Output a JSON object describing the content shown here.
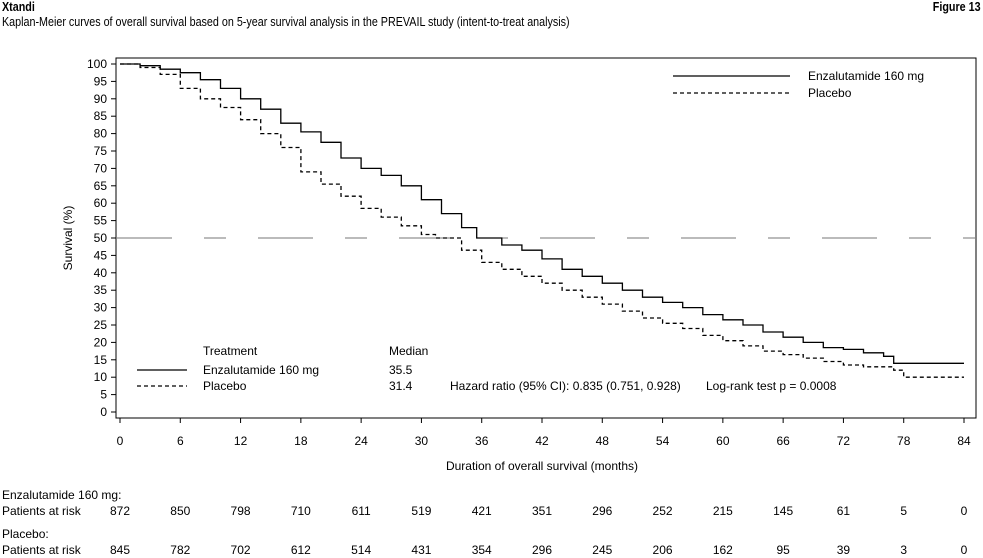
{
  "header": {
    "brand": "Xtandi",
    "figure_label": "Figure 13",
    "subtitle": "Kaplan-Meier curves of overall survival based on 5-year survival analysis in the PREVAIL study (intent-to-treat analysis)"
  },
  "chart_data": {
    "type": "line",
    "title": "Kaplan-Meier curves of overall survival based on 5-year survival analysis in the PREVAIL study (intent-to-treat analysis)",
    "xlabel": "Duration of overall survival (months)",
    "ylabel": "Survival (%)",
    "xlim": [
      0,
      84
    ],
    "ylim": [
      0,
      100
    ],
    "xticks": [
      "0",
      "6",
      "12",
      "18",
      "24",
      "30",
      "36",
      "42",
      "48",
      "54",
      "60",
      "66",
      "72",
      "78",
      "84"
    ],
    "yticks": [
      "0",
      "5",
      "10",
      "15",
      "20",
      "25",
      "30",
      "35",
      "40",
      "45",
      "50",
      "55",
      "60",
      "65",
      "70",
      "75",
      "80",
      "85",
      "90",
      "95",
      "100"
    ],
    "grid": false,
    "legend_position": "top-right",
    "reference_line": {
      "y": 50,
      "style": "dashed"
    },
    "series": [
      {
        "name": "Enzalutamide 160 mg",
        "style": "solid",
        "points": [
          [
            0,
            100
          ],
          [
            2,
            99.5
          ],
          [
            4,
            98.5
          ],
          [
            6,
            97.5
          ],
          [
            8,
            95.5
          ],
          [
            10,
            93
          ],
          [
            12,
            90
          ],
          [
            14,
            87
          ],
          [
            16,
            83
          ],
          [
            18,
            80.5
          ],
          [
            20,
            77.5
          ],
          [
            22,
            73
          ],
          [
            24,
            70
          ],
          [
            26,
            68
          ],
          [
            28,
            65
          ],
          [
            30,
            61
          ],
          [
            32,
            57
          ],
          [
            34,
            53
          ],
          [
            35.5,
            50
          ],
          [
            38,
            48
          ],
          [
            40,
            46.5
          ],
          [
            42,
            44
          ],
          [
            44,
            41
          ],
          [
            46,
            39
          ],
          [
            48,
            37
          ],
          [
            50,
            35
          ],
          [
            52,
            33
          ],
          [
            54,
            31.5
          ],
          [
            56,
            30
          ],
          [
            58,
            28
          ],
          [
            60,
            26.5
          ],
          [
            62,
            25
          ],
          [
            64,
            23
          ],
          [
            66,
            21.5
          ],
          [
            68,
            20
          ],
          [
            70,
            18.5
          ],
          [
            72,
            18
          ],
          [
            74,
            17
          ],
          [
            76,
            16
          ],
          [
            77,
            14
          ],
          [
            84,
            14
          ]
        ]
      },
      {
        "name": "Placebo",
        "style": "dashed",
        "points": [
          [
            0,
            100
          ],
          [
            2,
            99
          ],
          [
            4,
            97
          ],
          [
            6,
            93
          ],
          [
            8,
            90
          ],
          [
            10,
            87.5
          ],
          [
            12,
            84
          ],
          [
            14,
            80
          ],
          [
            16,
            76
          ],
          [
            18,
            69
          ],
          [
            20,
            65.5
          ],
          [
            22,
            62
          ],
          [
            24,
            58.5
          ],
          [
            26,
            56
          ],
          [
            28,
            53.5
          ],
          [
            30,
            51
          ],
          [
            31.4,
            50
          ],
          [
            34,
            46.5
          ],
          [
            36,
            43
          ],
          [
            38,
            41
          ],
          [
            40,
            39
          ],
          [
            42,
            37
          ],
          [
            44,
            35
          ],
          [
            46,
            33
          ],
          [
            48,
            31
          ],
          [
            50,
            29
          ],
          [
            52,
            27
          ],
          [
            54,
            25.5
          ],
          [
            56,
            24
          ],
          [
            58,
            22
          ],
          [
            60,
            20.5
          ],
          [
            62,
            19
          ],
          [
            64,
            17.5
          ],
          [
            66,
            16.5
          ],
          [
            68,
            15.5
          ],
          [
            70,
            14.5
          ],
          [
            72,
            13.5
          ],
          [
            74,
            13
          ],
          [
            77,
            12
          ],
          [
            78,
            10
          ],
          [
            84,
            10
          ]
        ]
      }
    ],
    "inset": {
      "col_treatment": "Treatment",
      "col_median": "Median",
      "rows": [
        {
          "label": "Enzalutamide 160 mg",
          "median": "35.5"
        },
        {
          "label": "Placebo",
          "median": "31.4"
        }
      ],
      "hazard_ratio": "Hazard ratio (95% CI): 0.835 (0.751, 0.928)",
      "logrank": "Log-rank test p = 0.0008"
    }
  },
  "risk_table": {
    "groups": [
      {
        "name": "Enzalutamide 160 mg:",
        "row_label": "Patients at risk",
        "values": [
          "872",
          "850",
          "798",
          "710",
          "611",
          "519",
          "421",
          "351",
          "296",
          "252",
          "215",
          "145",
          "61",
          "5",
          "0"
        ]
      },
      {
        "name": "Placebo:",
        "row_label": "Patients at risk",
        "values": [
          "845",
          "782",
          "702",
          "612",
          "514",
          "431",
          "354",
          "296",
          "245",
          "206",
          "162",
          "95",
          "39",
          "3",
          "0"
        ]
      }
    ]
  }
}
